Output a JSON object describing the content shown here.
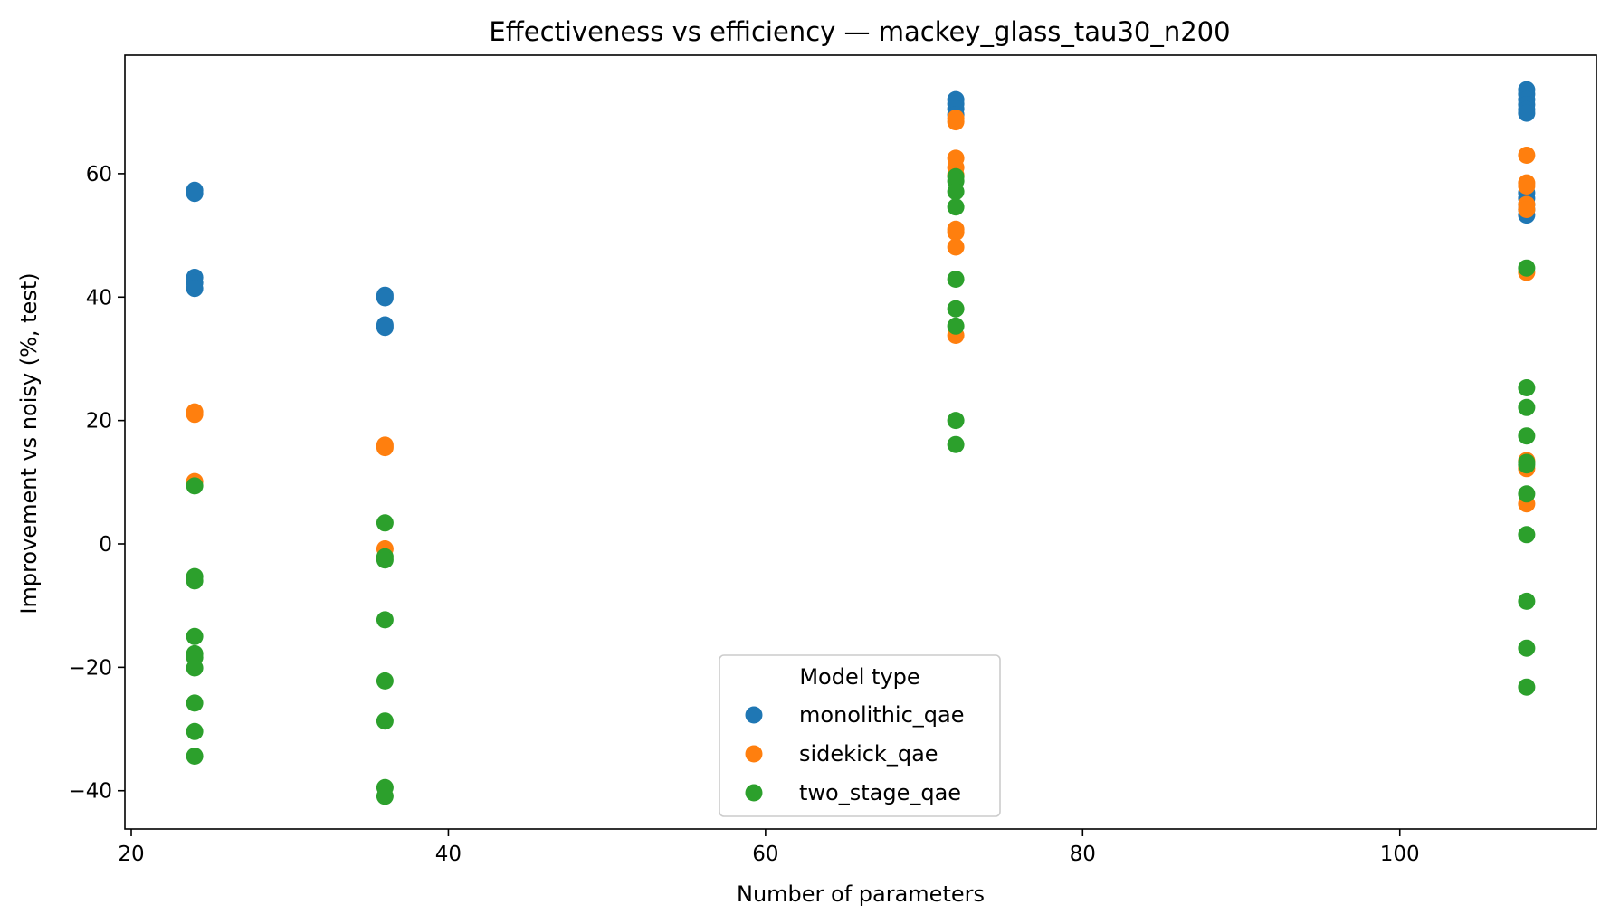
{
  "chart_data": {
    "type": "scatter",
    "title": "Effectiveness vs efficiency — mackey_glass_tau30_n200",
    "xlabel": "Number of parameters",
    "ylabel": "Improvement vs noisy (%, test)",
    "xlim": [
      19.6,
      112.4
    ],
    "ylim": [
      -46.2,
      79.2
    ],
    "xticks": [
      20,
      40,
      60,
      80,
      100
    ],
    "yticks": [
      -40,
      -20,
      0,
      20,
      40,
      60
    ],
    "xtick_labels": [
      "20",
      "40",
      "60",
      "80",
      "100"
    ],
    "ytick_labels": [
      "−40",
      "−20",
      "0",
      "20",
      "40",
      "60"
    ],
    "grid": false,
    "legend": {
      "title": "Model type",
      "placement": "lower-center"
    },
    "series": [
      {
        "name": "monolithic_qae",
        "color": "#1f77b4",
        "points": [
          [
            24,
            57.3
          ],
          [
            24,
            56.8
          ],
          [
            24,
            43.2
          ],
          [
            24,
            42.3
          ],
          [
            24,
            41.4
          ],
          [
            36,
            40.3
          ],
          [
            36,
            39.9
          ],
          [
            36,
            35.5
          ],
          [
            36,
            35.1
          ],
          [
            72,
            72.0
          ],
          [
            72,
            71.3
          ],
          [
            72,
            70.5
          ],
          [
            72,
            69.6
          ],
          [
            108,
            73.6
          ],
          [
            108,
            72.9
          ],
          [
            108,
            72.0
          ],
          [
            108,
            71.2
          ],
          [
            108,
            70.4
          ],
          [
            108,
            69.8
          ],
          [
            108,
            56.9
          ],
          [
            108,
            56.0
          ],
          [
            108,
            55.0
          ],
          [
            108,
            54.2
          ],
          [
            108,
            53.3
          ]
        ]
      },
      {
        "name": "sidekick_qae",
        "color": "#ff7f0e",
        "points": [
          [
            24,
            21.4
          ],
          [
            24,
            21.0
          ],
          [
            24,
            10.1
          ],
          [
            36,
            16.0
          ],
          [
            36,
            15.6
          ],
          [
            36,
            -0.8
          ],
          [
            72,
            69.0
          ],
          [
            72,
            68.4
          ],
          [
            72,
            62.5
          ],
          [
            72,
            61.0
          ],
          [
            72,
            59.8
          ],
          [
            72,
            51.0
          ],
          [
            72,
            50.5
          ],
          [
            72,
            48.1
          ],
          [
            72,
            33.8
          ],
          [
            108,
            63.0
          ],
          [
            108,
            58.5
          ],
          [
            108,
            58.0
          ],
          [
            108,
            55.0
          ],
          [
            108,
            54.2
          ],
          [
            108,
            44.0
          ],
          [
            108,
            13.5
          ],
          [
            108,
            12.2
          ],
          [
            108,
            6.5
          ]
        ]
      },
      {
        "name": "two_stage_qae",
        "color": "#2ca02c",
        "points": [
          [
            24,
            9.4
          ],
          [
            24,
            -5.3
          ],
          [
            24,
            -6.0
          ],
          [
            24,
            -15.0
          ],
          [
            24,
            -17.8
          ],
          [
            24,
            -18.4
          ],
          [
            24,
            -20.1
          ],
          [
            24,
            -25.8
          ],
          [
            24,
            -30.4
          ],
          [
            24,
            -34.4
          ],
          [
            36,
            3.4
          ],
          [
            36,
            -2.1
          ],
          [
            36,
            -2.6
          ],
          [
            36,
            -12.3
          ],
          [
            36,
            -22.2
          ],
          [
            36,
            -28.7
          ],
          [
            36,
            -39.5
          ],
          [
            36,
            -40.9
          ],
          [
            72,
            59.5
          ],
          [
            72,
            58.8
          ],
          [
            72,
            57.1
          ],
          [
            72,
            54.6
          ],
          [
            72,
            42.9
          ],
          [
            72,
            38.1
          ],
          [
            72,
            35.3
          ],
          [
            72,
            20.0
          ],
          [
            72,
            16.1
          ],
          [
            108,
            44.7
          ],
          [
            108,
            25.3
          ],
          [
            108,
            22.1
          ],
          [
            108,
            17.5
          ],
          [
            108,
            13.2
          ],
          [
            108,
            12.8
          ],
          [
            108,
            8.1
          ],
          [
            108,
            1.5
          ],
          [
            108,
            -9.3
          ],
          [
            108,
            -16.9
          ],
          [
            108,
            -23.2
          ]
        ]
      }
    ]
  }
}
